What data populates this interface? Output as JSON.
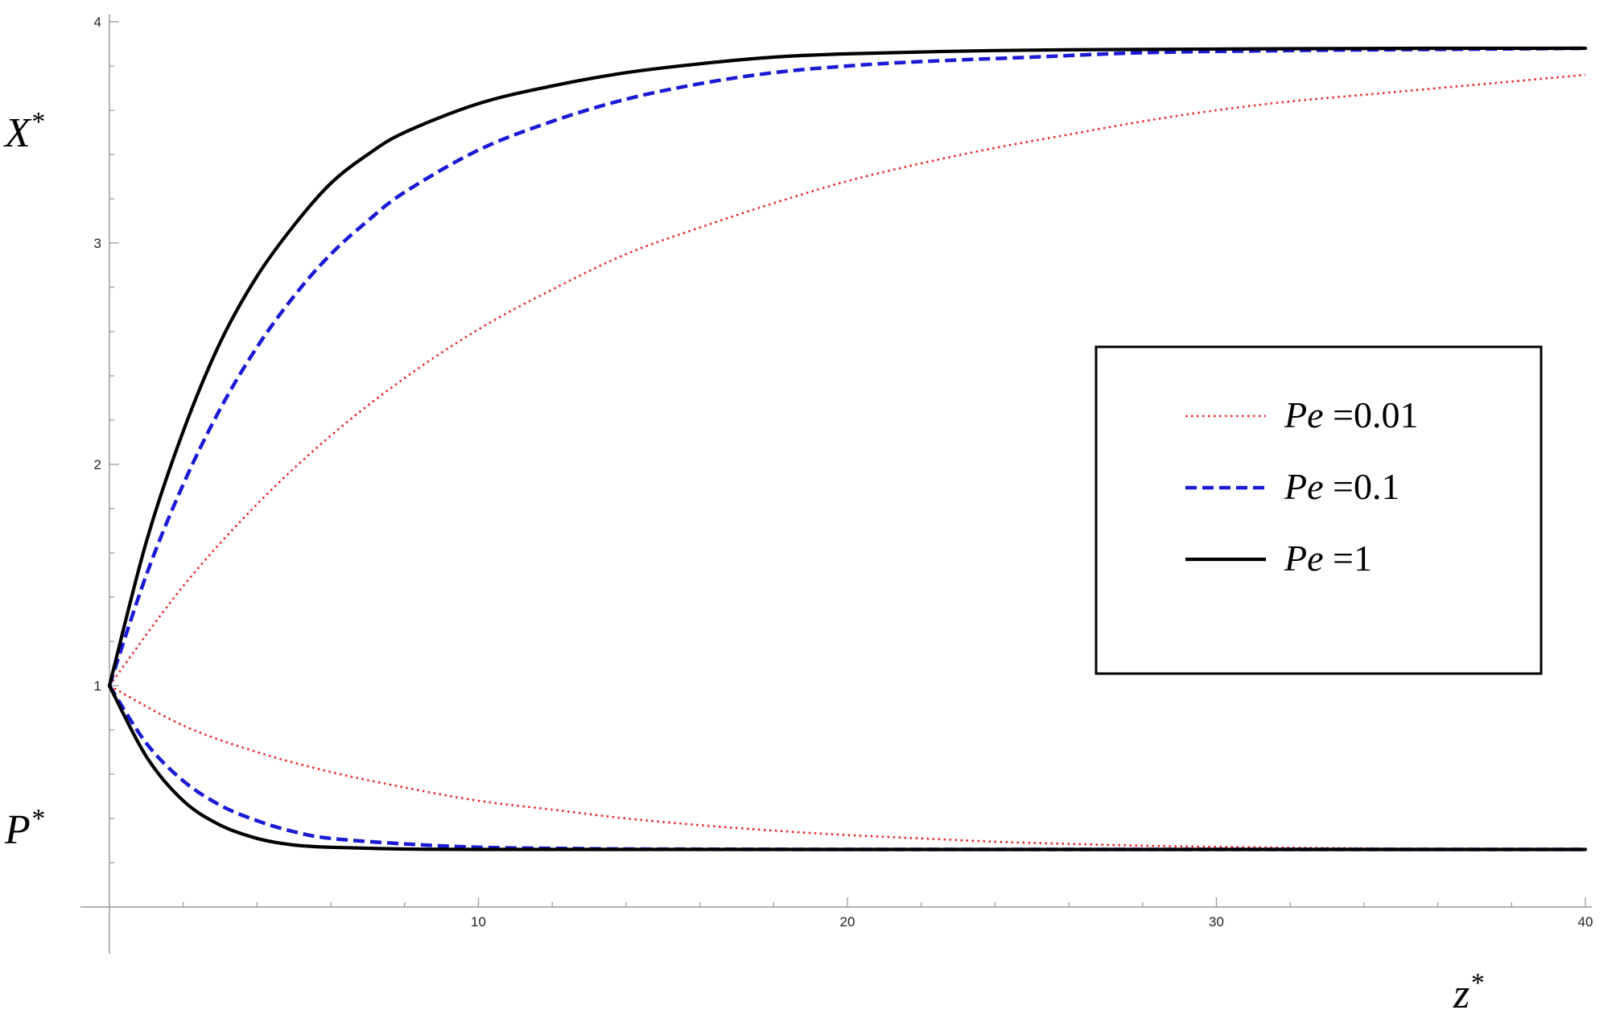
{
  "chart_data": {
    "type": "line",
    "xlabel": "z*",
    "ylabel_upper": "X*",
    "ylabel_lower": "P*",
    "xlim": [
      0,
      40
    ],
    "ylim": [
      0,
      4
    ],
    "x_ticks": [
      10,
      20,
      30,
      40
    ],
    "y_ticks": [
      1,
      2,
      3,
      4
    ],
    "grid": false,
    "legend_position": "center-right",
    "series": [
      {
        "name": "Pe =0.01",
        "legend_label": "Pe",
        "legend_value": "=0.01",
        "color": "#e8262a",
        "style": "dotted",
        "curves": {
          "X": {
            "x": [
              0,
              2,
              4,
              6,
              8,
              10,
              12,
              14,
              16,
              18,
              20,
              22,
              24,
              26,
              28,
              30,
              32,
              34,
              36,
              38,
              40
            ],
            "y": [
              1.0,
              1.45,
              1.82,
              2.13,
              2.39,
              2.61,
              2.79,
              2.95,
              3.07,
              3.18,
              3.28,
              3.36,
              3.43,
              3.49,
              3.55,
              3.6,
              3.64,
              3.67,
              3.7,
              3.73,
              3.76
            ]
          },
          "P": {
            "x": [
              0,
              2,
              4,
              6,
              8,
              10,
              12,
              14,
              16,
              18,
              20,
              22,
              24,
              26,
              28,
              30,
              32,
              34,
              36,
              38,
              40
            ],
            "y": [
              1.0,
              0.82,
              0.7,
              0.61,
              0.54,
              0.48,
              0.44,
              0.4,
              0.37,
              0.345,
              0.325,
              0.31,
              0.295,
              0.285,
              0.277,
              0.272,
              0.268,
              0.265,
              0.263,
              0.261,
              0.26
            ]
          }
        }
      },
      {
        "name": "Pe =0.1",
        "legend_label": "Pe",
        "legend_value": "=0.1",
        "color": "#1a1ad6",
        "style": "dashed",
        "curves": {
          "X": {
            "x": [
              0,
              1,
              2,
              3,
              4,
              5,
              6,
              7,
              8,
              10,
              12,
              14,
              16,
              18,
              20,
              22,
              25,
              28,
              32,
              36,
              40
            ],
            "y": [
              1.0,
              1.5,
              1.91,
              2.25,
              2.53,
              2.76,
              2.95,
              3.1,
              3.23,
              3.42,
              3.55,
              3.65,
              3.72,
              3.77,
              3.8,
              3.82,
              3.84,
              3.86,
              3.87,
              3.875,
              3.88
            ]
          },
          "P": {
            "x": [
              0,
              1,
              2,
              3,
              4,
              5,
              6,
              8,
              10,
              12,
              14,
              16,
              20,
              25,
              30,
              35,
              40
            ],
            "y": [
              1.0,
              0.74,
              0.57,
              0.46,
              0.39,
              0.34,
              0.31,
              0.285,
              0.27,
              0.265,
              0.262,
              0.261,
              0.26,
              0.26,
              0.26,
              0.26,
              0.26
            ]
          }
        }
      },
      {
        "name": "Pe =1",
        "legend_label": "Pe",
        "legend_value": "=1",
        "color": "#000000",
        "style": "solid",
        "curves": {
          "X": {
            "x": [
              0,
              1,
              2,
              3,
              4,
              5,
              6,
              7,
              8,
              10,
              12,
              14,
              16,
              18,
              20,
              24,
              28,
              32,
              36,
              40
            ],
            "y": [
              1.0,
              1.65,
              2.15,
              2.55,
              2.85,
              3.08,
              3.27,
              3.4,
              3.5,
              3.63,
              3.71,
              3.77,
              3.81,
              3.84,
              3.855,
              3.87,
              3.875,
              3.878,
              3.88,
              3.88
            ]
          },
          "P": {
            "x": [
              0,
              1,
              2,
              3,
              4,
              5,
              6,
              8,
              10,
              15,
              20,
              30,
              40
            ],
            "y": [
              1.0,
              0.68,
              0.48,
              0.37,
              0.31,
              0.28,
              0.27,
              0.262,
              0.26,
              0.26,
              0.26,
              0.26,
              0.26
            ]
          }
        }
      }
    ]
  }
}
